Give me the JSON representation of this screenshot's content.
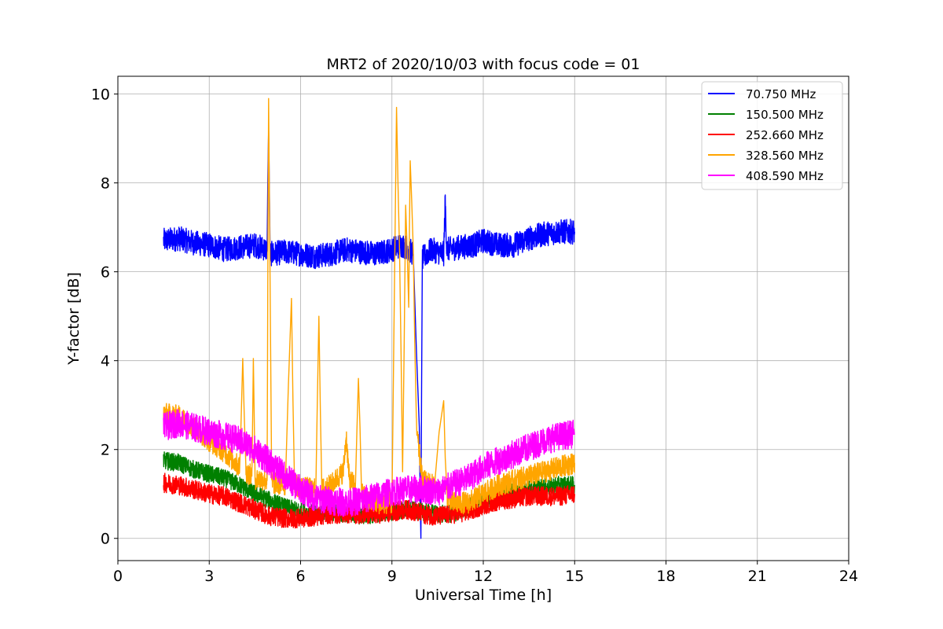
{
  "chart_data": {
    "type": "line",
    "title": "MRT2 of 2020/10/03 with focus code = 01",
    "xlabel": "Universal Time [h]",
    "ylabel": "Y-factor [dB]",
    "xlim": [
      0,
      24
    ],
    "ylim": [
      -0.5,
      10.4
    ],
    "xticks": [
      0,
      3,
      6,
      9,
      12,
      15,
      18,
      21,
      24
    ],
    "yticks": [
      0,
      2,
      4,
      6,
      8,
      10
    ],
    "grid": true,
    "legend_position": "top-right",
    "series": [
      {
        "name": " 70.750 MHz",
        "color": "#0000ff",
        "points": [
          [
            1.5,
            6.7
          ],
          [
            2,
            6.75
          ],
          [
            2.5,
            6.65
          ],
          [
            3,
            6.6
          ],
          [
            3.5,
            6.5
          ],
          [
            4,
            6.55
          ],
          [
            4.5,
            6.6
          ],
          [
            4.9,
            6.5
          ],
          [
            4.95,
            9.2
          ],
          [
            5.0,
            6.4
          ],
          [
            5.5,
            6.45
          ],
          [
            6,
            6.4
          ],
          [
            6.5,
            6.35
          ],
          [
            7,
            6.4
          ],
          [
            7.5,
            6.5
          ],
          [
            8,
            6.45
          ],
          [
            8.5,
            6.4
          ],
          [
            9,
            6.5
          ],
          [
            9.3,
            6.6
          ],
          [
            9.5,
            6.55
          ],
          [
            9.7,
            6.4
          ],
          [
            9.9,
            2.5
          ],
          [
            9.95,
            0.0
          ],
          [
            10.0,
            6.3
          ],
          [
            10.3,
            6.5
          ],
          [
            10.7,
            6.4
          ],
          [
            10.75,
            7.6
          ],
          [
            10.8,
            6.5
          ],
          [
            11.2,
            6.55
          ],
          [
            11.7,
            6.6
          ],
          [
            12,
            6.7
          ],
          [
            12.5,
            6.6
          ],
          [
            13,
            6.6
          ],
          [
            13.5,
            6.75
          ],
          [
            14,
            6.85
          ],
          [
            14.5,
            6.9
          ],
          [
            15,
            6.9
          ]
        ],
        "noise": 0.28
      },
      {
        "name": "150.500 MHz",
        "color": "#008000",
        "points": [
          [
            1.5,
            1.75
          ],
          [
            2,
            1.7
          ],
          [
            2.5,
            1.55
          ],
          [
            3,
            1.45
          ],
          [
            3.5,
            1.35
          ],
          [
            4,
            1.2
          ],
          [
            4.5,
            1.0
          ],
          [
            5,
            0.85
          ],
          [
            5.5,
            0.7
          ],
          [
            6,
            0.6
          ],
          [
            6.5,
            0.55
          ],
          [
            7,
            0.6
          ],
          [
            7.5,
            0.55
          ],
          [
            8,
            0.5
          ],
          [
            8.5,
            0.55
          ],
          [
            9,
            0.6
          ],
          [
            9.5,
            0.65
          ],
          [
            10,
            0.6
          ],
          [
            10.5,
            0.55
          ],
          [
            11,
            0.55
          ],
          [
            11.5,
            0.7
          ],
          [
            12,
            0.85
          ],
          [
            12.5,
            0.95
          ],
          [
            13,
            1.05
          ],
          [
            13.5,
            1.1
          ],
          [
            14,
            1.15
          ],
          [
            14.5,
            1.2
          ],
          [
            15,
            1.2
          ]
        ],
        "noise": 0.2
      },
      {
        "name": "252.660 MHz",
        "color": "#ff0000",
        "points": [
          [
            1.5,
            1.25
          ],
          [
            2,
            1.2
          ],
          [
            2.5,
            1.1
          ],
          [
            3,
            1.0
          ],
          [
            3.5,
            0.95
          ],
          [
            4,
            0.8
          ],
          [
            4.5,
            0.65
          ],
          [
            5,
            0.5
          ],
          [
            5.5,
            0.45
          ],
          [
            6,
            0.45
          ],
          [
            6.5,
            0.5
          ],
          [
            7,
            0.55
          ],
          [
            7.5,
            0.55
          ],
          [
            8,
            0.55
          ],
          [
            8.5,
            0.55
          ],
          [
            9,
            0.6
          ],
          [
            9.5,
            0.65
          ],
          [
            10,
            0.55
          ],
          [
            10.5,
            0.5
          ],
          [
            11,
            0.55
          ],
          [
            11.5,
            0.6
          ],
          [
            12,
            0.75
          ],
          [
            12.5,
            0.85
          ],
          [
            13,
            0.9
          ],
          [
            13.5,
            0.95
          ],
          [
            14,
            0.95
          ],
          [
            14.5,
            0.95
          ],
          [
            15,
            1.0
          ]
        ],
        "noise": 0.22
      },
      {
        "name": "328.560 MHz",
        "color": "#ffa500",
        "points": [
          [
            1.5,
            2.8
          ],
          [
            2,
            2.75
          ],
          [
            2.5,
            2.5
          ],
          [
            3,
            2.2
          ],
          [
            3.5,
            1.95
          ],
          [
            4,
            1.6
          ],
          [
            4.1,
            4.05
          ],
          [
            4.2,
            1.5
          ],
          [
            4.4,
            1.4
          ],
          [
            4.45,
            4.05
          ],
          [
            4.5,
            1.35
          ],
          [
            4.9,
            1.3
          ],
          [
            4.95,
            9.9
          ],
          [
            5.05,
            1.25
          ],
          [
            5.5,
            1.2
          ],
          [
            5.7,
            5.4
          ],
          [
            5.8,
            1.2
          ],
          [
            6,
            1.15
          ],
          [
            6.5,
            1.1
          ],
          [
            6.6,
            5.0
          ],
          [
            6.7,
            1.1
          ],
          [
            7,
            1.2
          ],
          [
            7.4,
            1.5
          ],
          [
            7.5,
            2.3
          ],
          [
            7.6,
            1.3
          ],
          [
            7.8,
            1.2
          ],
          [
            7.9,
            3.6
          ],
          [
            8.0,
            1.0
          ],
          [
            8.5,
            0.8
          ],
          [
            9.0,
            0.8
          ],
          [
            9.15,
            9.7
          ],
          [
            9.25,
            6.5
          ],
          [
            9.35,
            1.5
          ],
          [
            9.45,
            7.5
          ],
          [
            9.55,
            5.2
          ],
          [
            9.6,
            8.5
          ],
          [
            9.7,
            6.5
          ],
          [
            9.8,
            2.5
          ],
          [
            10.0,
            1.3
          ],
          [
            10.4,
            1.2
          ],
          [
            10.7,
            3.1
          ],
          [
            10.8,
            1.0
          ],
          [
            11,
            0.8
          ],
          [
            11.5,
            0.8
          ],
          [
            12,
            1.0
          ],
          [
            12.5,
            1.2
          ],
          [
            13,
            1.3
          ],
          [
            13.5,
            1.4
          ],
          [
            14,
            1.5
          ],
          [
            14.5,
            1.6
          ],
          [
            15,
            1.7
          ]
        ],
        "noise": 0.25
      },
      {
        "name": "408.590 MHz",
        "color": "#ff00ff",
        "points": [
          [
            1.5,
            2.5
          ],
          [
            2,
            2.6
          ],
          [
            2.5,
            2.5
          ],
          [
            3,
            2.4
          ],
          [
            3.5,
            2.3
          ],
          [
            4,
            2.2
          ],
          [
            4.5,
            2.0
          ],
          [
            5,
            1.7
          ],
          [
            5.5,
            1.4
          ],
          [
            6,
            1.1
          ],
          [
            6.5,
            0.9
          ],
          [
            7,
            0.85
          ],
          [
            7.5,
            0.8
          ],
          [
            8,
            0.85
          ],
          [
            8.5,
            0.95
          ],
          [
            9,
            1.05
          ],
          [
            9.5,
            1.1
          ],
          [
            10,
            1.1
          ],
          [
            10.5,
            1.05
          ],
          [
            11,
            1.2
          ],
          [
            11.5,
            1.35
          ],
          [
            12,
            1.6
          ],
          [
            12.5,
            1.75
          ],
          [
            13,
            1.9
          ],
          [
            13.5,
            2.05
          ],
          [
            14,
            2.2
          ],
          [
            14.5,
            2.3
          ],
          [
            15,
            2.35
          ]
        ],
        "noise": 0.32
      }
    ]
  }
}
